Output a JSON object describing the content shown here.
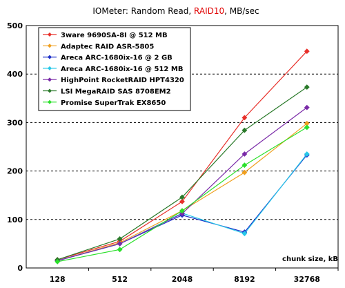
{
  "chart_data": {
    "type": "line",
    "title_parts": [
      "IOMeter: Random Read, ",
      "RAID10",
      ", MB/sec"
    ],
    "title_highlight_color": "#e00000",
    "xlabel": "chunk size, kB",
    "ylabel": "",
    "categories": [
      "128",
      "512",
      "2048",
      "8192",
      "32768"
    ],
    "ylim": [
      0,
      500
    ],
    "yticks": [
      0,
      100,
      200,
      300,
      400,
      500
    ],
    "grid": "horizontal dashed",
    "legend_position": "top-left",
    "series": [
      {
        "name": "3ware 9690SA-8I @ 512 MB",
        "color": "#e8302a",
        "values": [
          17,
          55,
          137,
          310,
          447
        ]
      },
      {
        "name": "Adaptec RAID ASR-5805",
        "color": "#f0a020",
        "values": [
          15,
          52,
          118,
          197,
          298
        ]
      },
      {
        "name": "Areca ARC-1680ix-16 @ 2 GB",
        "color": "#1c2fc8",
        "values": [
          15,
          50,
          109,
          74,
          233
        ]
      },
      {
        "name": "Areca ARC-1680ix-16 @ 512 MB",
        "color": "#28c8e8",
        "values": [
          15,
          50,
          113,
          71,
          235
        ]
      },
      {
        "name": "HighPoint RocketRAID HPT4320",
        "color": "#7a2aa8",
        "values": [
          15,
          50,
          112,
          235,
          331
        ]
      },
      {
        "name": "LSI MegaRAID SAS 8708EM2",
        "color": "#2a7a2a",
        "values": [
          17,
          60,
          146,
          284,
          373
        ]
      },
      {
        "name": "Promise SuperTrak EX8650",
        "color": "#2ae02a",
        "values": [
          13,
          38,
          118,
          212,
          290
        ]
      }
    ]
  }
}
